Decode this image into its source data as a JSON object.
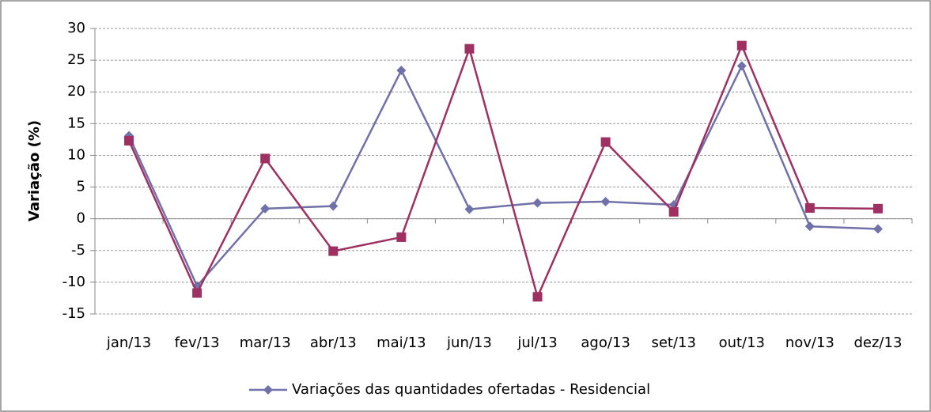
{
  "chart_data": {
    "type": "line",
    "y_label": "Variação (%)",
    "categories": [
      "jan/13",
      "fev/13",
      "mar/13",
      "abr/13",
      "mai/13",
      "jun/13",
      "jul/13",
      "ago/13",
      "set/13",
      "out/13",
      "nov/13",
      "dez/13"
    ],
    "series": [
      {
        "name": "Variações das quantidades ofertadas - Residencial",
        "color": "#7171AA",
        "marker": "diamond",
        "values": [
          13.1,
          -10.6,
          1.6,
          2.0,
          23.4,
          1.5,
          2.5,
          2.7,
          2.2,
          24.1,
          -1.2,
          -1.6
        ]
      },
      {
        "color": "#9E3062",
        "marker": "square",
        "values": [
          12.3,
          -11.7,
          9.5,
          -5.1,
          -2.9,
          26.8,
          -12.3,
          12.1,
          1.1,
          27.3,
          1.7,
          1.6
        ]
      }
    ],
    "ylim": [
      -15,
      30
    ],
    "yticks": [
      -15,
      -10,
      -5,
      0,
      5,
      10,
      15,
      20,
      25,
      30
    ],
    "grid": true,
    "legend": "bottom"
  }
}
